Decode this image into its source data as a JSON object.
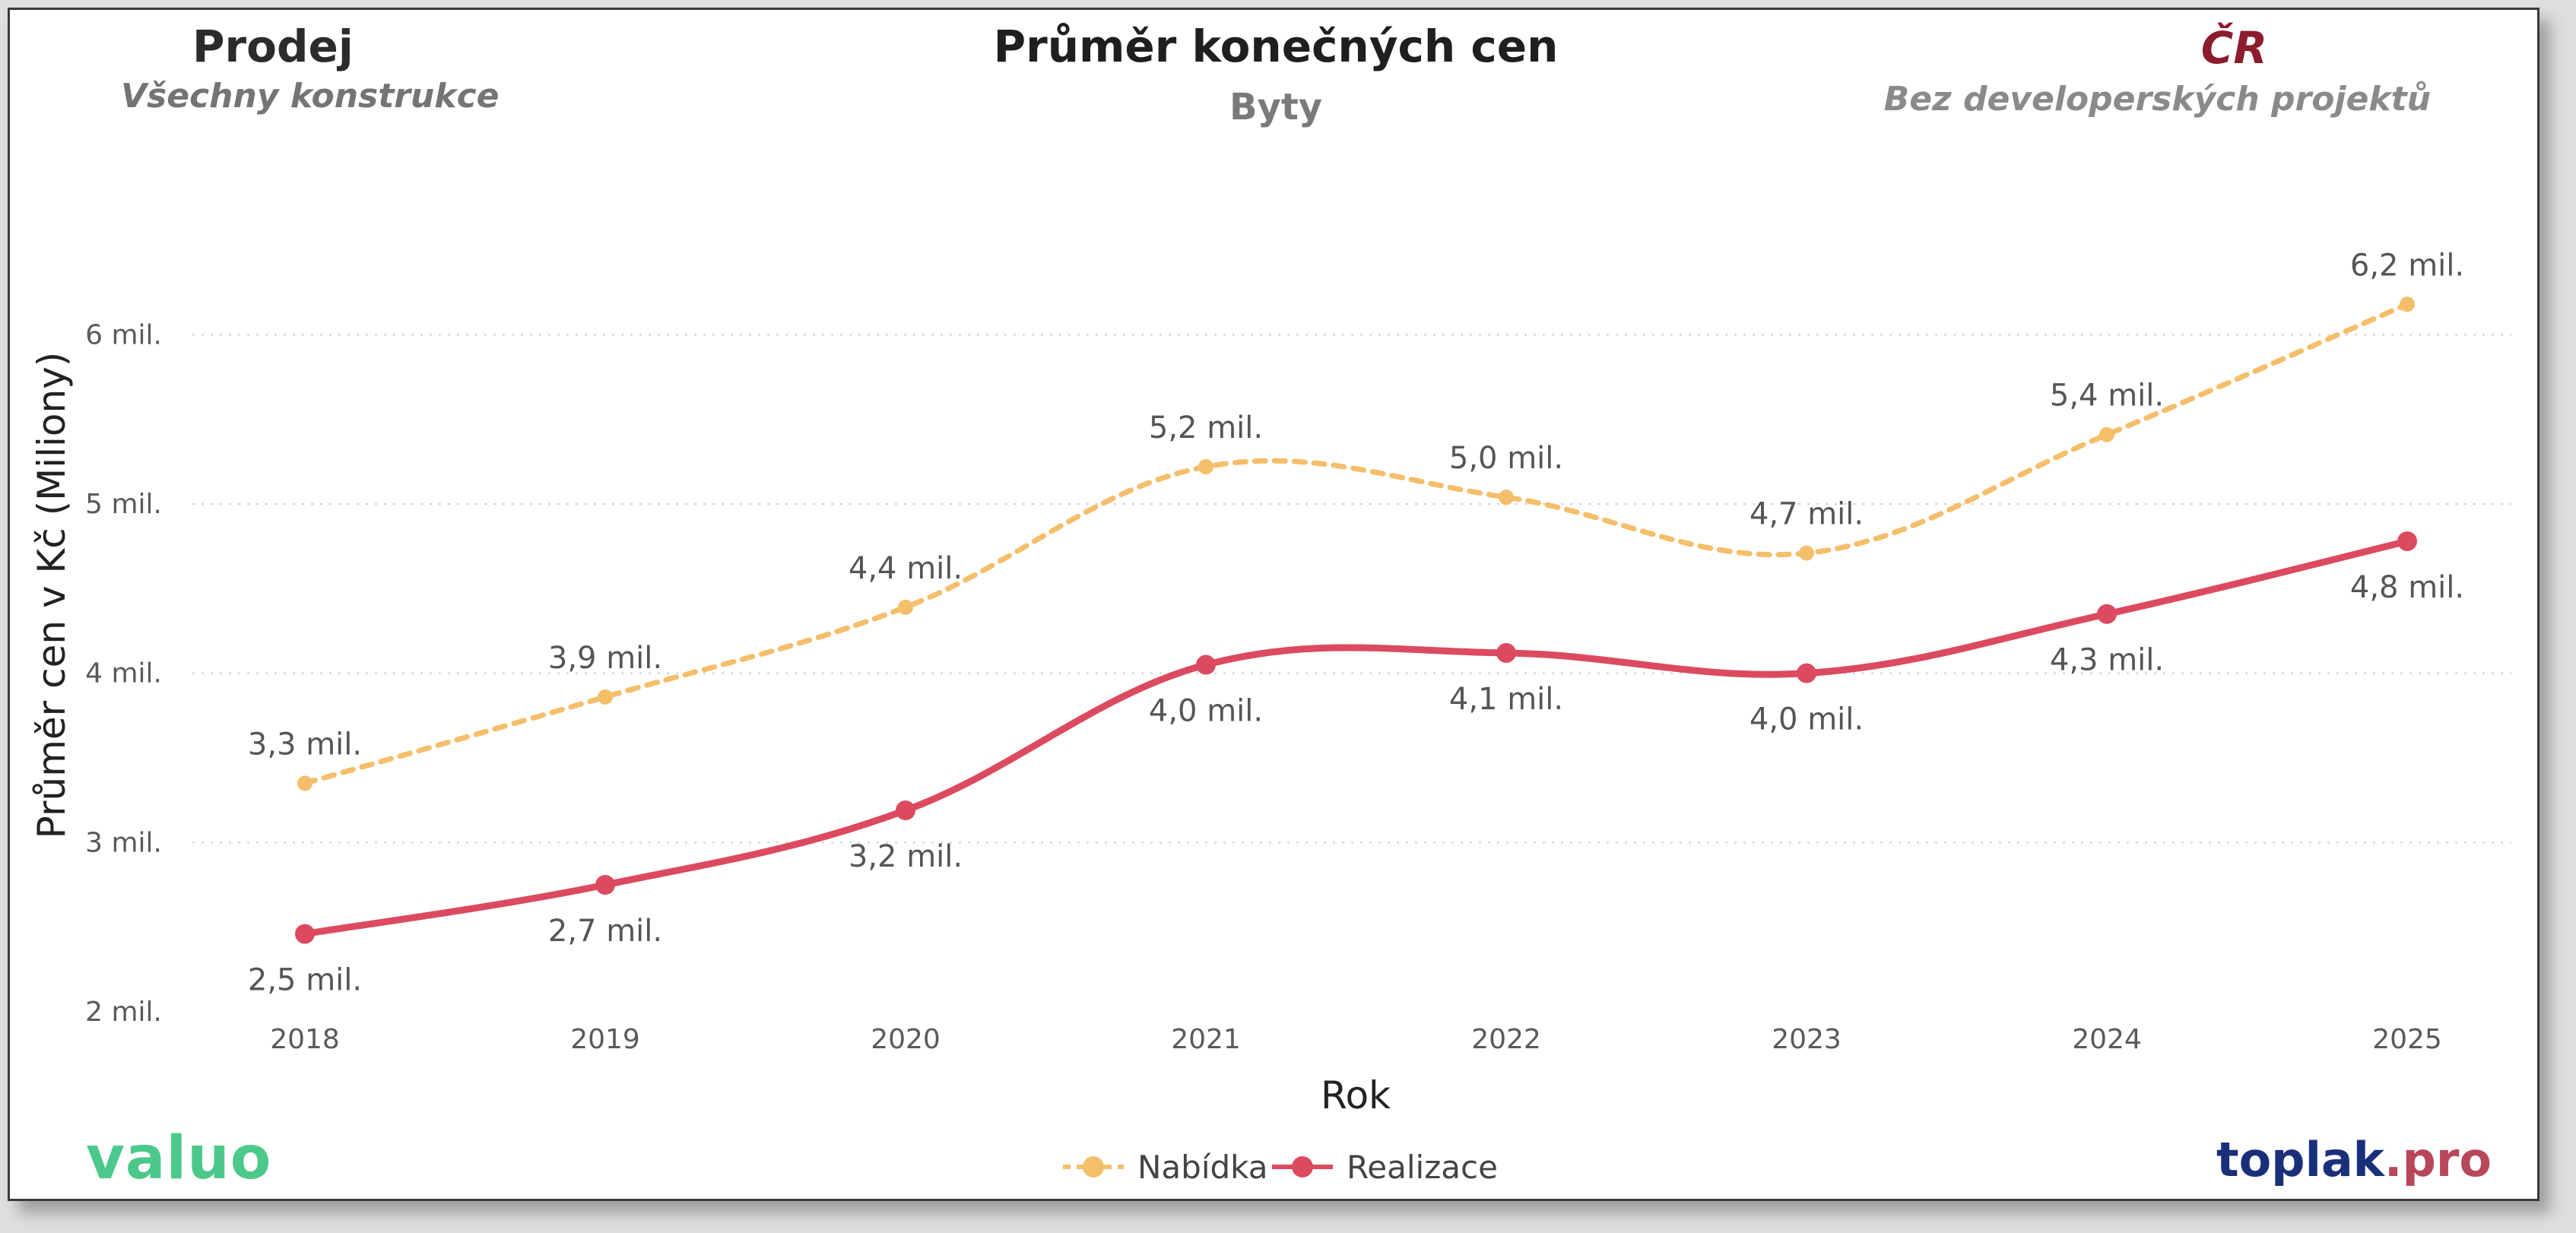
{
  "header": {
    "left_title": "Prodej",
    "left_subtitle": "Všechny konstrukce",
    "center_title": "Průměr konečných cen",
    "center_subtitle": "Byty",
    "right_title": "ČR",
    "right_subtitle": "Bez developerských projektů"
  },
  "logos": {
    "left": "valuo",
    "right_part1": "toplak",
    "right_part2": ".pro"
  },
  "colors": {
    "nabidka": "#F5BE6A",
    "realizace": "#DC4A60",
    "grid": "#d0d0d0"
  },
  "chart_data": {
    "type": "line",
    "title": "Průměr konečných cen",
    "subtitle": "Byty",
    "xlabel": "Rok",
    "ylabel": "Průměr cen v Kč (Miliony)",
    "x": [
      "2018",
      "2019",
      "2020",
      "2021",
      "2022",
      "2023",
      "2024",
      "2025"
    ],
    "ylim": [
      2,
      6.5
    ],
    "yticks": [
      2,
      3,
      4,
      5,
      6
    ],
    "ytick_labels": [
      "2 mil.",
      "3 mil.",
      "4 mil.",
      "5 mil.",
      "6 mil."
    ],
    "grid": true,
    "legend_position": "bottom-center",
    "series": [
      {
        "name": "Nabídka",
        "style": "dashed",
        "values": [
          3.35,
          3.86,
          4.39,
          5.22,
          5.04,
          4.71,
          5.41,
          6.18
        ],
        "labels": [
          "3,3 mil.",
          "3,9 mil.",
          "4,4 mil.",
          "5,2 mil.",
          "5,0 mil.",
          "4,7 mil.",
          "5,4 mil.",
          "6,2 mil."
        ]
      },
      {
        "name": "Realizace",
        "style": "solid",
        "values": [
          2.46,
          2.75,
          3.19,
          4.05,
          4.12,
          4.0,
          4.35,
          4.78
        ],
        "labels": [
          "2,5 mil.",
          "2,7 mil.",
          "3,2 mil.",
          "4,0 mil.",
          "4,1 mil.",
          "4,0 mil.",
          "4,3 mil.",
          "4,8 mil."
        ]
      }
    ]
  }
}
